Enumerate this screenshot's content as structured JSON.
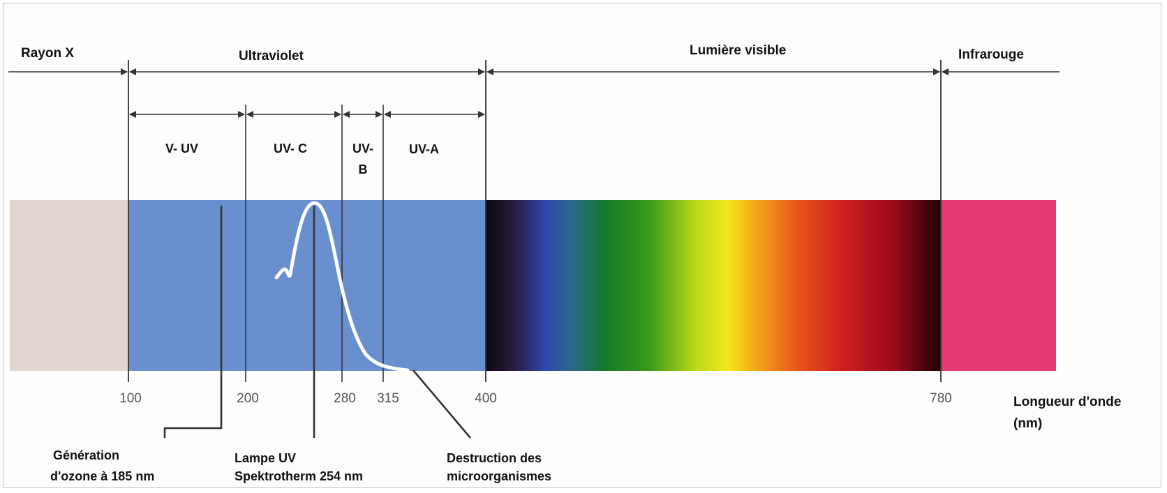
{
  "regions": {
    "xray": "Rayon X",
    "ultraviolet": "Ultraviolet",
    "visible": "Lumière visible",
    "infrared": "Infrarouge"
  },
  "uv_bands": {
    "vuv": "V- UV",
    "uvc": "UV- C",
    "uvb_line1": "UV-",
    "uvb_line2": "B",
    "uva": "UV-A"
  },
  "ticks": [
    "100",
    "200",
    "280",
    "315",
    "400",
    "780"
  ],
  "axis": {
    "label_line1": "Longueur d'onde",
    "label_line2": "(nm)"
  },
  "annotations": {
    "ozone_line1": "Génération",
    "ozone_line2": "d'ozone à 185 nm",
    "lamp_line1": "Lampe UV",
    "lamp_line2": "Spektrotherm 254 nm",
    "destruction_line1": "Destruction des",
    "destruction_line2": "microorganismes"
  },
  "colors": {
    "xray_band": "#e3d5cf",
    "uv_band": "#6a8fce",
    "infrared_band": "#e33a72",
    "line": "#333333",
    "curve": "#ffffff",
    "tick_text": "#555555"
  }
}
